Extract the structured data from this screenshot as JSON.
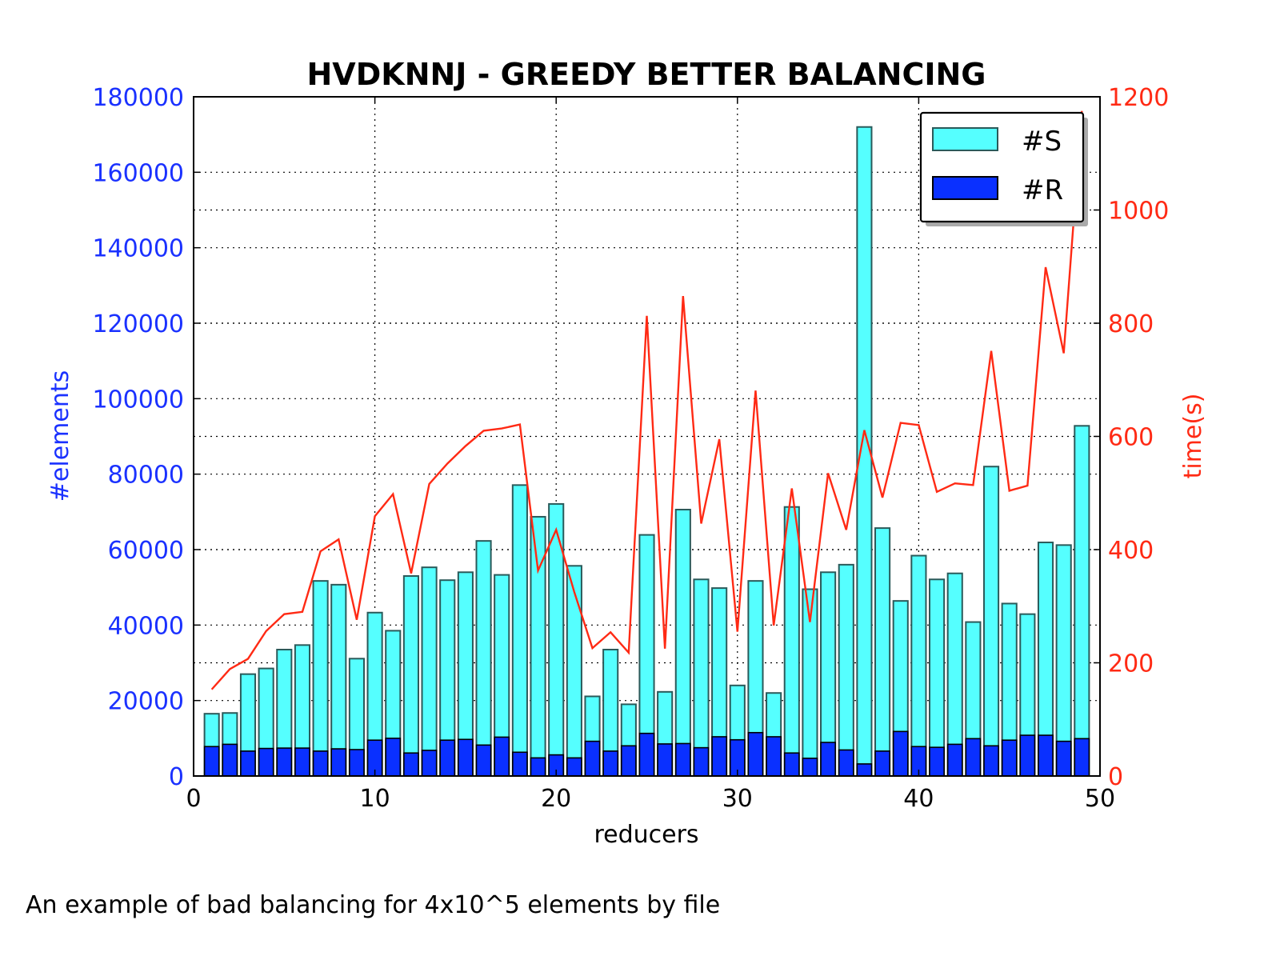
{
  "chart_data": {
    "type": "bar",
    "title": "HVDKNNJ - GREEDY BETTER BALANCING",
    "xlabel": "reducers",
    "ylabel": "#elements",
    "y2label": "time(s)",
    "xlim": [
      0,
      50
    ],
    "ylim": [
      0,
      180000
    ],
    "y2lim": [
      0,
      1200
    ],
    "xticks": [
      "0",
      "10",
      "20",
      "30",
      "40",
      "50"
    ],
    "yticks": [
      "0",
      "20000",
      "40000",
      "60000",
      "80000",
      "100000",
      "120000",
      "140000",
      "160000",
      "180000"
    ],
    "y2ticks": [
      "0",
      "200",
      "400",
      "600",
      "800",
      "1000",
      "1200"
    ],
    "grid": true,
    "legend_position": "top-right",
    "x": [
      1,
      2,
      3,
      4,
      5,
      6,
      7,
      8,
      9,
      10,
      11,
      12,
      13,
      14,
      15,
      16,
      17,
      18,
      19,
      20,
      21,
      22,
      23,
      24,
      25,
      26,
      27,
      28,
      29,
      30,
      31,
      32,
      33,
      34,
      35,
      36,
      37,
      38,
      39,
      40,
      41,
      42,
      43,
      44,
      45,
      46,
      47,
      48,
      49,
      50
    ],
    "series": [
      {
        "name": "#S",
        "kind": "bar",
        "axis": "left",
        "color": "#55ffff",
        "values": [
          16500,
          16700,
          27000,
          28500,
          33500,
          34700,
          51700,
          50700,
          31100,
          43300,
          38500,
          53000,
          55300,
          51900,
          54000,
          62300,
          53300,
          77100,
          68700,
          72100,
          55700,
          21100,
          33500,
          19000,
          63900,
          22300,
          70600,
          52100,
          49800,
          24000,
          51700,
          22000,
          71300,
          49500,
          54000,
          56000,
          172000,
          65700,
          46400,
          58400,
          52100,
          53700,
          40800,
          82000,
          45700,
          42900,
          61900,
          61200,
          92800,
          0
        ]
      },
      {
        "name": "#R",
        "kind": "bar",
        "axis": "left",
        "color": "#0a30ff",
        "values": [
          7800,
          8400,
          6600,
          7300,
          7400,
          7400,
          6600,
          7200,
          7000,
          9500,
          10000,
          6100,
          6800,
          9500,
          9700,
          8200,
          10300,
          6300,
          4800,
          5600,
          4800,
          9200,
          6600,
          8000,
          11300,
          8500,
          8600,
          7500,
          10400,
          9600,
          11500,
          10400,
          6100,
          4700,
          8900,
          6900,
          3200,
          6600,
          11800,
          7800,
          7600,
          8400,
          9900,
          8000,
          9500,
          10800,
          10800,
          9200,
          9900,
          0
        ]
      },
      {
        "name": "time",
        "kind": "line",
        "axis": "right",
        "color": "#ff2a14",
        "values": [
          153,
          189,
          207,
          256,
          286,
          290,
          397,
          418,
          276,
          459,
          498,
          358,
          516,
          552,
          583,
          610,
          614,
          621,
          363,
          435,
          325,
          226,
          254,
          218,
          813,
          225,
          848,
          446,
          595,
          255,
          681,
          266,
          508,
          272,
          535,
          435,
          611,
          492,
          624,
          620,
          502,
          517,
          514,
          751,
          504,
          513,
          899,
          747,
          1175,
          null
        ]
      }
    ]
  },
  "caption": "An example of bad balancing for 4x10^5 elements by file"
}
